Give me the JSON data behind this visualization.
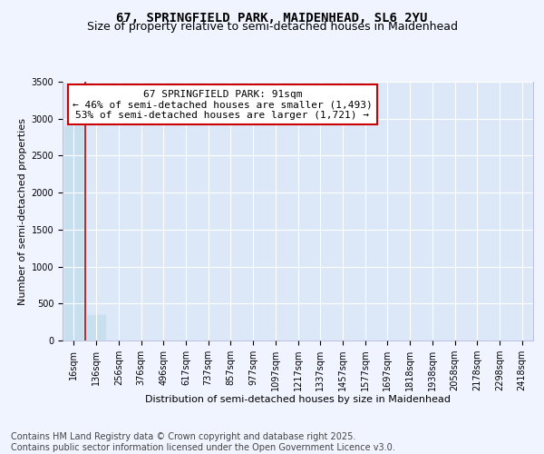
{
  "title_line1": "67, SPRINGFIELD PARK, MAIDENHEAD, SL6 2YU",
  "title_line2": "Size of property relative to semi-detached houses in Maidenhead",
  "xlabel": "Distribution of semi-detached houses by size in Maidenhead",
  "ylabel": "Number of semi-detached properties",
  "annotation_line1": "67 SPRINGFIELD PARK: 91sqm",
  "annotation_line2": "← 46% of semi-detached houses are smaller (1,493)",
  "annotation_line3": "53% of semi-detached houses are larger (1,721) →",
  "footer_line1": "Contains HM Land Registry data © Crown copyright and database right 2025.",
  "footer_line2": "Contains public sector information licensed under the Open Government Licence v3.0.",
  "categories": [
    "16sqm",
    "136sqm",
    "256sqm",
    "376sqm",
    "496sqm",
    "617sqm",
    "737sqm",
    "857sqm",
    "977sqm",
    "1097sqm",
    "1217sqm",
    "1337sqm",
    "1457sqm",
    "1577sqm",
    "1697sqm",
    "1818sqm",
    "1938sqm",
    "2058sqm",
    "2178sqm",
    "2298sqm",
    "2418sqm"
  ],
  "values": [
    2900,
    350,
    3,
    2,
    1,
    1,
    1,
    0,
    0,
    0,
    0,
    0,
    0,
    0,
    0,
    0,
    0,
    0,
    0,
    0,
    0
  ],
  "bar_color": "#c8dff0",
  "property_line_x": 0.5,
  "property_line_color": "#cc0000",
  "ylim": [
    0,
    3500
  ],
  "yticks": [
    0,
    500,
    1000,
    1500,
    2000,
    2500,
    3000,
    3500
  ],
  "bg_color": "#f0f4ff",
  "plot_bg_color": "#dce8f8",
  "grid_color": "#ffffff",
  "title_fontsize": 10,
  "subtitle_fontsize": 9,
  "axis_label_fontsize": 8,
  "tick_fontsize": 7,
  "annotation_fontsize": 8,
  "footer_fontsize": 7
}
